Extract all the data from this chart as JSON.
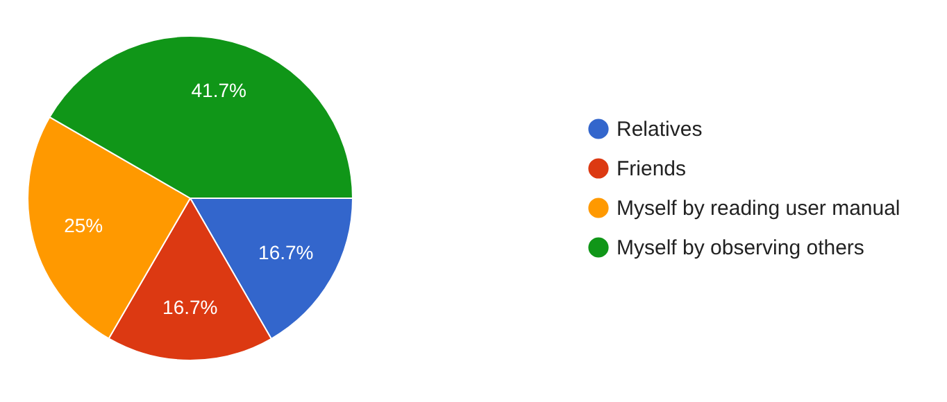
{
  "chart_data": {
    "type": "pie",
    "categories": [
      "Relatives",
      "Friends",
      "Myself by reading user manual",
      "Myself by observing others"
    ],
    "values": [
      16.7,
      16.7,
      25,
      41.7
    ],
    "colors": [
      "#3366cc",
      "#dc3912",
      "#ff9900",
      "#109618"
    ],
    "value_labels": [
      "16.7%",
      "16.7%",
      "25%",
      "41.7%"
    ],
    "legend": "right"
  }
}
